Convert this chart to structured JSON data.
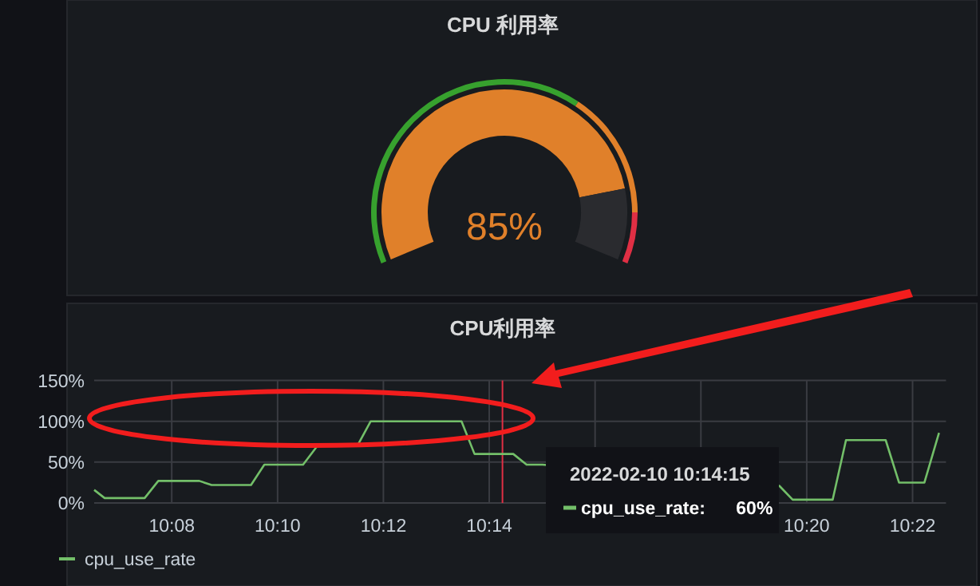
{
  "chart_data": [
    {
      "type": "donut",
      "title": "CPU 利用率",
      "categories": [
        null,
        null,
        null
      ],
      "series": [
        {
          "values": [
            85,
            15,
            null
          ],
          "colors": [
            "#e0802a",
            "#2a2b2f",
            null
          ]
        },
        {
          "values": [
            65,
            25,
            10
          ],
          "colors": [
            "#37a12e",
            "#e0802a",
            "#e02f44"
          ]
        }
      ],
      "annotations": [
        "85%"
      ]
    },
    {
      "type": "line",
      "title": "CPU利用率",
      "series": [
        {
          "name": "cpu_use_rate",
          "color": "#73bf69",
          "x": [
            10.1089,
            10.1122,
            10.1248,
            10.1291,
            10.142,
            10.1459,
            10.1583,
            10.1625,
            10.1747,
            10.1792,
            10.1918,
            10.196,
            10.2246,
            10.2287,
            10.2409,
            10.2451,
            10.2501,
            10.3247,
            10.3289,
            10.3415,
            10.3457,
            10.3582,
            10.3624,
            10.3704,
            10.375
          ],
          "values": [
            16,
            6,
            6,
            27,
            27,
            22,
            22,
            47,
            47,
            70,
            70,
            100,
            100,
            60,
            60,
            47,
            47,
            21,
            4,
            4,
            77,
            77,
            25,
            25,
            86
          ]
        }
      ],
      "xlim": [
        10.1089,
        10.3772
      ],
      "xticks": [
        {
          "value": 10.13333,
          "label": "10:08"
        },
        {
          "value": 10.16667,
          "label": "10:10"
        },
        {
          "value": 10.2,
          "label": "10:12"
        },
        {
          "value": 10.23333,
          "label": "10:14"
        },
        {
          "value": 10.26667,
          "label": null
        },
        {
          "value": 10.3,
          "label": null
        },
        {
          "value": 10.33333,
          "label": "10:20"
        },
        {
          "value": 10.36667,
          "label": "10:22"
        }
      ],
      "ylim": [
        0,
        150
      ],
      "yticks": [
        {
          "value": 0,
          "label": "0%"
        },
        {
          "value": 50,
          "label": "50%"
        },
        {
          "value": 100,
          "label": "100%"
        },
        {
          "value": 150,
          "label": "150%"
        }
      ],
      "grid": true,
      "legend": "bottom",
      "ref_lines": [
        {
          "axis": "x",
          "value": 10.2375,
          "color": "#e02f44"
        }
      ],
      "annotations": [
        "2022-02-10 10:14:15",
        "cpu_use_rate:      60%"
      ]
    }
  ]
}
